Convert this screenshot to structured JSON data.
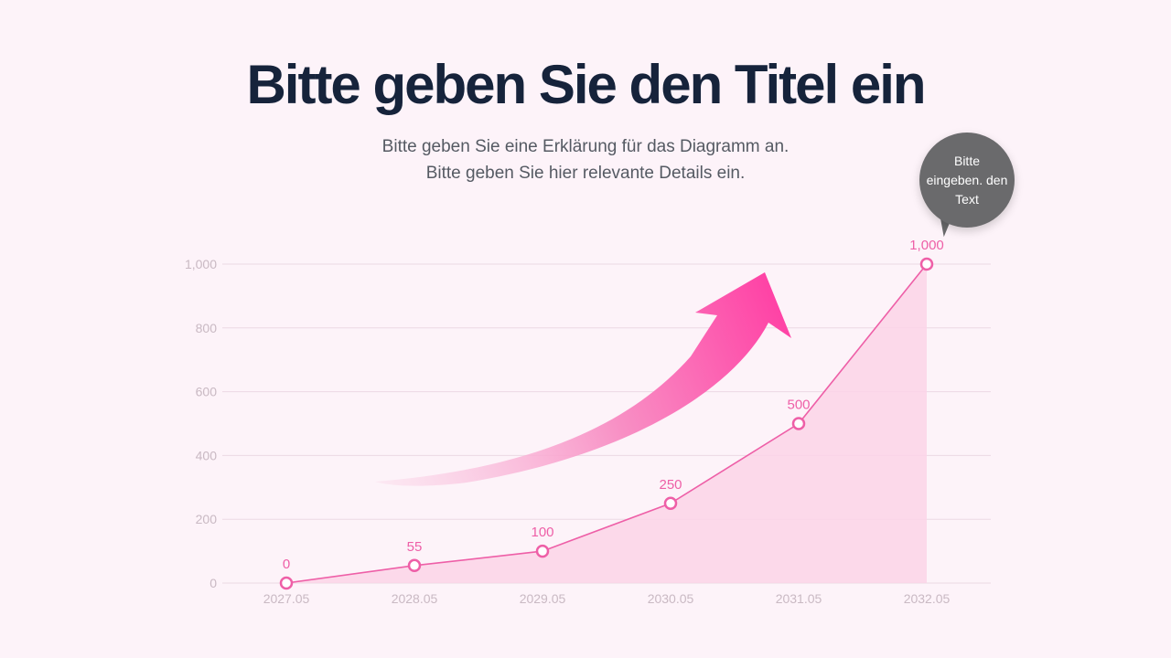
{
  "header": {
    "title": "Bitte geben Sie den Titel ein",
    "subtitle_line1": "Bitte geben Sie eine Erklärung für das Diagramm an.",
    "subtitle_line2": "Bitte geben Sie hier relevante Details ein."
  },
  "callout": {
    "text": "Bitte eingeben. den Text"
  },
  "colors": {
    "background": "#fdf3f9",
    "accent": "#ee5fa7",
    "area_fill": "#fbd3e8",
    "grid": "#ecd9e4",
    "bubble": "#6a6a6c"
  },
  "chart_data": {
    "type": "area",
    "title": "Bitte geben Sie den Titel ein",
    "categories": [
      "2027.05",
      "2028.05",
      "2029.05",
      "2030.05",
      "2031.05",
      "2032.05"
    ],
    "values": [
      0,
      55,
      100,
      250,
      500,
      1000
    ],
    "data_labels": [
      "0",
      "55",
      "100",
      "250",
      "500",
      "1,000"
    ],
    "yticks": [
      0,
      200,
      400,
      600,
      800,
      1000
    ],
    "ytick_labels": [
      "0",
      "200",
      "400",
      "600",
      "800",
      "1,000"
    ],
    "ylim": [
      0,
      1000
    ],
    "xlabel": "",
    "ylabel": "",
    "grid": true,
    "legend": "none",
    "annotation": "upward trend arrow"
  }
}
